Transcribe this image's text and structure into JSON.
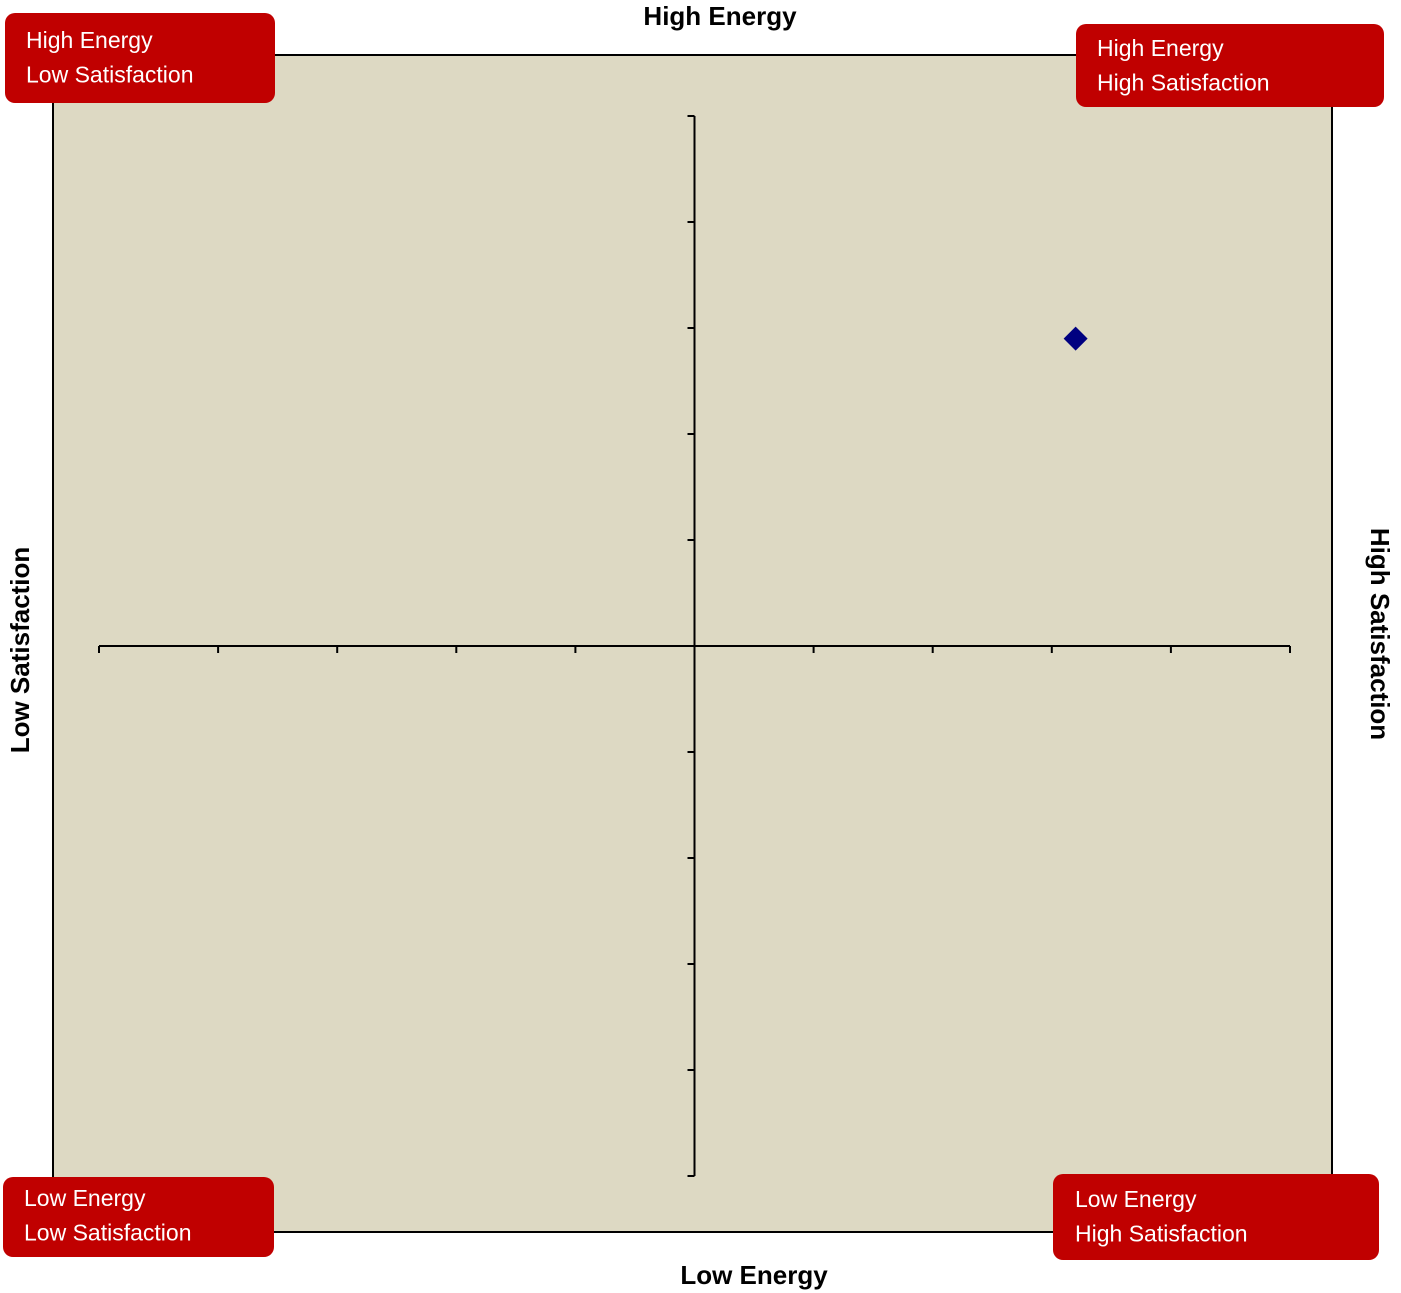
{
  "chart_data": {
    "type": "scatter",
    "top_label": "High Energy",
    "bottom_label": "Low Energy",
    "left_label": "Low  Satisfaction",
    "right_label": "High  Satisfaction",
    "quadrant_labels": [
      {
        "lines": [
          "High Energy",
          "Low Satisfaction"
        ]
      },
      {
        "lines": [
          "High Energy",
          "High Satisfaction"
        ]
      },
      {
        "lines": [
          "Low Energy",
          "Low Satisfaction"
        ]
      },
      {
        "lines": [
          "Low Energy",
          "High Satisfaction"
        ]
      }
    ],
    "x": [
      3.2
    ],
    "y": [
      2.9
    ],
    "color": "#000080",
    "marker": "diamond",
    "plot_background": "#ddd9c3",
    "label_box_color": "#c00000",
    "xlim": [
      -5,
      5
    ],
    "ylim": [
      -5,
      5
    ],
    "xticks": [
      -5,
      -4,
      -3,
      -2,
      -1,
      0,
      1,
      2,
      3,
      4,
      5
    ],
    "yticks": [
      -5,
      -4,
      -3,
      -2,
      -1,
      0,
      1,
      2,
      3,
      4,
      5
    ]
  }
}
